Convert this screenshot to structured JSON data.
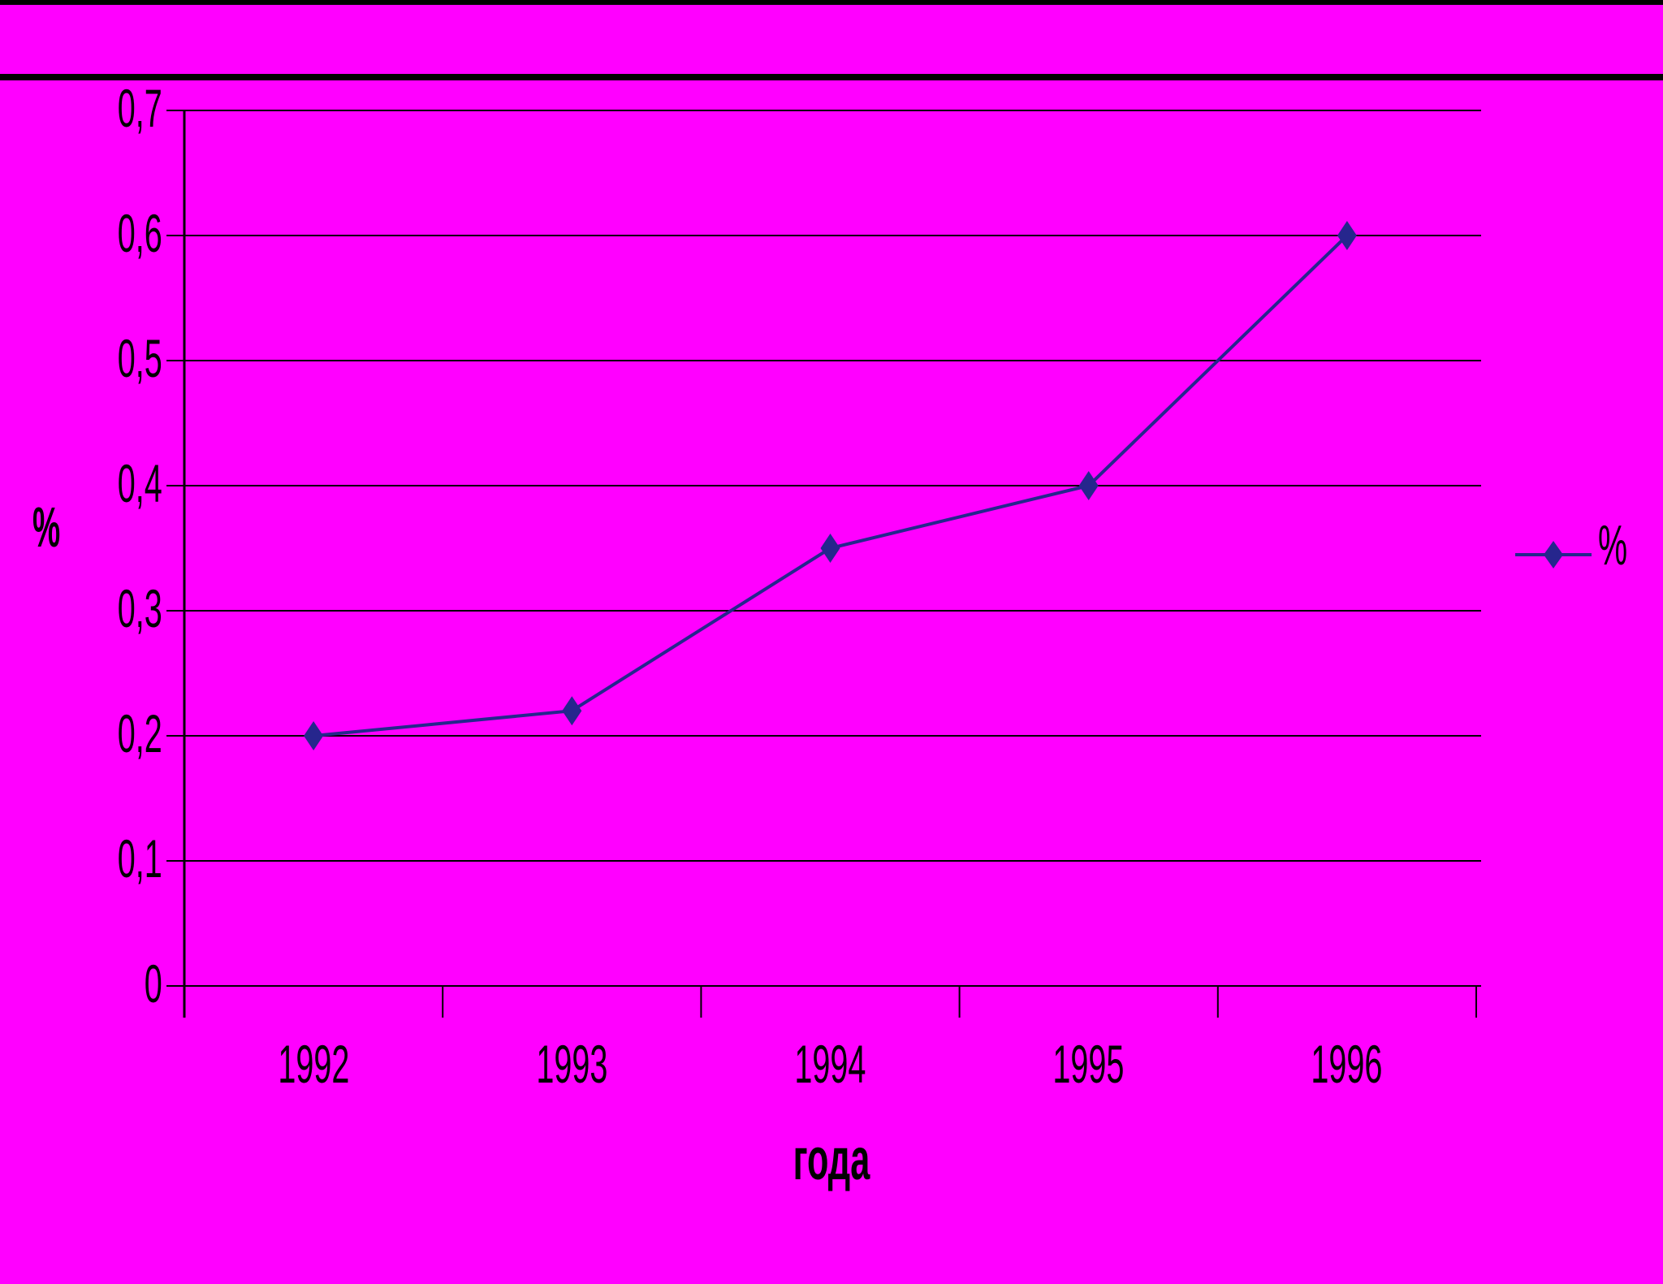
{
  "page": {
    "background_color": "#FF00FF",
    "rule_color": "#000000"
  },
  "chart_data": {
    "type": "line",
    "categories": [
      "1992",
      "1993",
      "1994",
      "1995",
      "1996"
    ],
    "series": [
      {
        "name": "%",
        "values": [
          0.2,
          0.22,
          0.35,
          0.4,
          0.6
        ]
      }
    ],
    "title": "",
    "xlabel": "года",
    "ylabel": "%",
    "ylim": [
      0,
      0.7
    ],
    "y_tick_step": 0.1,
    "y_tick_labels": [
      "0",
      "0,1",
      "0,2",
      "0,3",
      "0,4",
      "0,5",
      "0,6",
      "0,7"
    ],
    "grid": true,
    "grid_color": "#000000",
    "line_color": "#26268D",
    "marker": "diamond",
    "legend": {
      "position": "right",
      "entries": [
        "%"
      ]
    }
  }
}
